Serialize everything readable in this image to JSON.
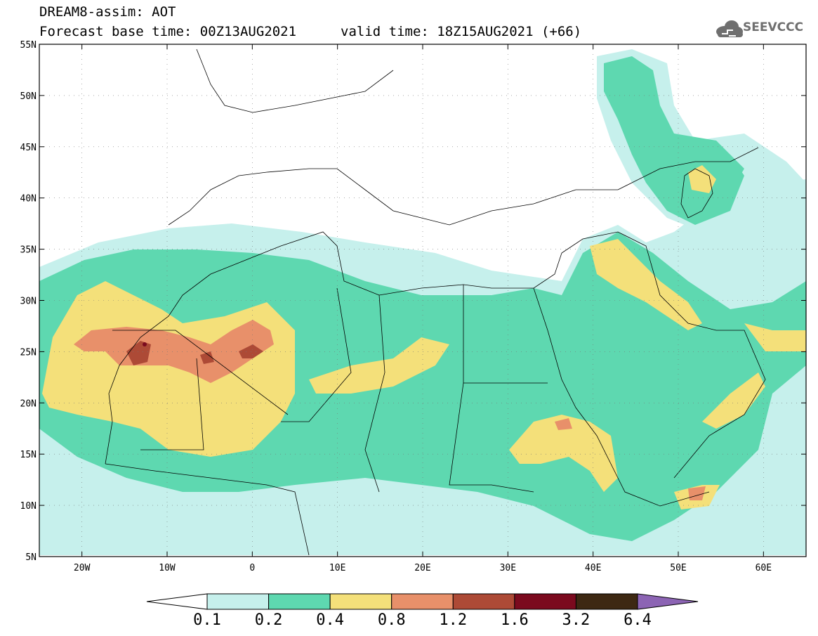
{
  "header": {
    "title": "DREAM8-assim: AOT",
    "base_time": "Forecast base time: 00Z13AUG2021",
    "valid_time": "valid time: 18Z15AUG2021 (+66)"
  },
  "logo": {
    "text": "SEEVCCC",
    "icon": "cloud-icon"
  },
  "map": {
    "lon_range": [
      -25,
      65
    ],
    "lat_range": [
      5,
      55
    ],
    "lat_ticks": [
      {
        "v": 55,
        "label": "55N"
      },
      {
        "v": 50,
        "label": "50N"
      },
      {
        "v": 45,
        "label": "45N"
      },
      {
        "v": 40,
        "label": "40N"
      },
      {
        "v": 35,
        "label": "35N"
      },
      {
        "v": 30,
        "label": "30N"
      },
      {
        "v": 25,
        "label": "25N"
      },
      {
        "v": 20,
        "label": "20N"
      },
      {
        "v": 15,
        "label": "15N"
      },
      {
        "v": 10,
        "label": "10N"
      },
      {
        "v": 5,
        "label": "5N"
      }
    ],
    "lon_ticks": [
      {
        "v": -20,
        "label": "20W"
      },
      {
        "v": -10,
        "label": "10W"
      },
      {
        "v": 0,
        "label": "0"
      },
      {
        "v": 10,
        "label": "10E"
      },
      {
        "v": 20,
        "label": "20E"
      },
      {
        "v": 30,
        "label": "30E"
      },
      {
        "v": 40,
        "label": "40E"
      },
      {
        "v": 50,
        "label": "50E"
      },
      {
        "v": 60,
        "label": "60E"
      }
    ]
  },
  "colorbar": {
    "colors": [
      "#c6f0ec",
      "#5ed8b0",
      "#f4e07a",
      "#e8906a",
      "#ad4a36",
      "#7b0a1e",
      "#3d2812"
    ],
    "under_color": "#ffffff",
    "over_color": "#8c64b4",
    "labels": [
      "0.1",
      "0.2",
      "0.4",
      "0.8",
      "1.2",
      "1.6",
      "3.2",
      "6.4"
    ]
  }
}
